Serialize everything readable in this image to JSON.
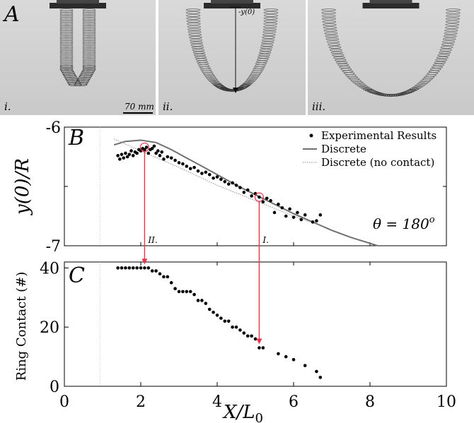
{
  "photos": {
    "panel_label": "A",
    "items": [
      {
        "label": "i.",
        "shape": "U-narrow"
      },
      {
        "label": "ii.",
        "shape": "V-mid"
      },
      {
        "label": "iii.",
        "shape": "U-wide"
      }
    ],
    "scale_bar": "70 mm",
    "y_marker": "-y(0)"
  },
  "colors": {
    "experimental": "#000000",
    "discrete": "#707070",
    "no_contact": "#909090",
    "arrow": "#e8364a"
  },
  "chart_data": [
    {
      "type": "scatter",
      "panel_label": "B",
      "ylabel": "y(0)/R",
      "xlim": [
        0,
        10
      ],
      "ylim": [
        -7,
        -6
      ],
      "yticks": [
        "-6",
        "-7"
      ],
      "annotation": "θ = 180",
      "annotation_sup": "o",
      "legend_position": "top-right",
      "grid": false,
      "legend": [
        {
          "name": "Experimental Results",
          "style": "dot"
        },
        {
          "name": "Discrete",
          "style": "solid"
        },
        {
          "name": "Discrete (no contact)",
          "style": "dotted"
        }
      ],
      "series": [
        {
          "name": "Experimental Results",
          "x": [
            1.4,
            1.45,
            1.5,
            1.55,
            1.6,
            1.65,
            1.7,
            1.75,
            1.8,
            1.85,
            1.9,
            1.95,
            2.0,
            2.05,
            2.1,
            2.15,
            2.2,
            2.25,
            2.3,
            2.35,
            2.4,
            2.45,
            2.5,
            2.55,
            2.6,
            2.7,
            2.8,
            2.9,
            3.0,
            3.1,
            3.2,
            3.3,
            3.4,
            3.5,
            3.6,
            3.7,
            3.8,
            3.9,
            4.0,
            4.1,
            4.2,
            4.3,
            4.4,
            4.5,
            4.6,
            4.7,
            4.8,
            4.9,
            5.0,
            5.1,
            5.2,
            5.3,
            5.4,
            5.5,
            5.6,
            5.7,
            5.8,
            5.9,
            6.0,
            6.1,
            6.2,
            6.3,
            6.5,
            6.6,
            6.7
          ],
          "y": [
            -6.24,
            -6.27,
            -6.23,
            -6.26,
            -6.22,
            -6.25,
            -6.23,
            -6.2,
            -6.24,
            -6.21,
            -6.22,
            -6.19,
            -6.2,
            -6.18,
            -6.19,
            -6.17,
            -6.22,
            -6.19,
            -6.18,
            -6.16,
            -6.22,
            -6.2,
            -6.24,
            -6.21,
            -6.27,
            -6.25,
            -6.26,
            -6.28,
            -6.3,
            -6.31,
            -6.33,
            -6.35,
            -6.34,
            -6.37,
            -6.39,
            -6.38,
            -6.4,
            -6.43,
            -6.42,
            -6.44,
            -6.46,
            -6.48,
            -6.47,
            -6.49,
            -6.51,
            -6.55,
            -6.53,
            -6.58,
            -6.56,
            -6.59,
            -6.63,
            -6.6,
            -6.62,
            -6.72,
            -6.65,
            -6.68,
            -6.75,
            -6.69,
            -6.76,
            -6.72,
            -6.78,
            -6.74,
            -6.8,
            -6.79,
            -6.74
          ]
        },
        {
          "name": "Discrete",
          "x": [
            1.3,
            1.6,
            2.0,
            2.4,
            2.8,
            3.2,
            3.6,
            4.0,
            4.5,
            5.0,
            5.5,
            6.0,
            6.5,
            7.0,
            7.5,
            8.0,
            8.2
          ],
          "y": [
            -6.15,
            -6.12,
            -6.11,
            -6.13,
            -6.19,
            -6.26,
            -6.33,
            -6.4,
            -6.49,
            -6.57,
            -6.65,
            -6.73,
            -6.8,
            -6.87,
            -6.93,
            -6.98,
            -7.0
          ]
        },
        {
          "name": "Discrete (no contact)",
          "x": [
            1.3,
            2.0,
            3.0,
            4.0,
            5.0,
            6.0,
            6.8
          ],
          "y": [
            -6.1,
            -6.2,
            -6.34,
            -6.49,
            -6.62,
            -6.75,
            -6.84
          ]
        }
      ],
      "highlighted": [
        {
          "label": "II.",
          "x": 2.1,
          "y": -6.17
        },
        {
          "label": "I.",
          "x": 5.1,
          "y": -6.59
        }
      ]
    },
    {
      "type": "scatter",
      "panel_label": "C",
      "ylabel": "Ring Contact (#)",
      "xlabel": "X/L",
      "xlabel_sub": "0",
      "xlim": [
        0,
        10
      ],
      "ylim": [
        0,
        42
      ],
      "xticks": [
        "0",
        "2",
        "4",
        "6",
        "8",
        "10"
      ],
      "yticks": [
        "0",
        "20",
        "40"
      ],
      "series": [
        {
          "name": "Ring contact",
          "x": [
            1.4,
            1.5,
            1.6,
            1.7,
            1.8,
            1.9,
            2.0,
            2.1,
            2.2,
            2.3,
            2.4,
            2.5,
            2.6,
            2.7,
            2.8,
            2.9,
            3.0,
            3.1,
            3.2,
            3.3,
            3.4,
            3.5,
            3.6,
            3.7,
            3.8,
            3.9,
            4.0,
            4.1,
            4.2,
            4.3,
            4.4,
            4.5,
            4.6,
            4.7,
            4.8,
            4.9,
            5.0,
            5.1,
            5.2,
            5.6,
            5.8,
            6.0,
            6.3,
            6.6,
            6.7
          ],
          "y": [
            40,
            40,
            40,
            40,
            40,
            40,
            40,
            40,
            40,
            39,
            39,
            38,
            37,
            37,
            35,
            33,
            32,
            32,
            32,
            32,
            31,
            29,
            29,
            28,
            26,
            25,
            24,
            23,
            22,
            22,
            20,
            20,
            19,
            18,
            17,
            17,
            16,
            13,
            13,
            11,
            10,
            9,
            7,
            5,
            3
          ]
        }
      ]
    }
  ],
  "arrows": [
    {
      "label": "II.",
      "x": 2.1
    },
    {
      "label": "I.",
      "x": 5.1
    }
  ]
}
